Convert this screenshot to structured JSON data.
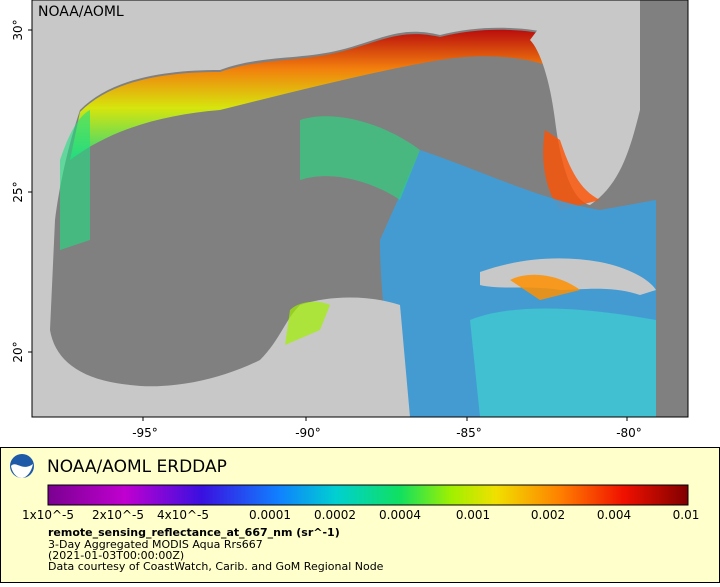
{
  "map": {
    "watermark": "NOAA/AOML",
    "lat_ticks": [
      "30°",
      "25°",
      "20°"
    ],
    "lon_ticks": [
      "-95°",
      "-90°",
      "-85°",
      "-80°"
    ]
  },
  "legend": {
    "title": "NOAA/AOML ERDDAP",
    "colorbar_labels": [
      "1x10^-5",
      "2x10^-5",
      "4x10^-5",
      "0.0001",
      "0.0002",
      "0.0004",
      "0.001",
      "0.002",
      "0.004",
      "0.01"
    ],
    "variable": "remote_sensing_reflectance_at_667_nm (sr^-1)",
    "dataset": "3-Day Aggregated MODIS Aqua Rrs667",
    "time": "(2021-01-03T00:00:00Z)",
    "credit": "Data courtesy of CoastWatch, Carib. and GoM Regional Node"
  }
}
